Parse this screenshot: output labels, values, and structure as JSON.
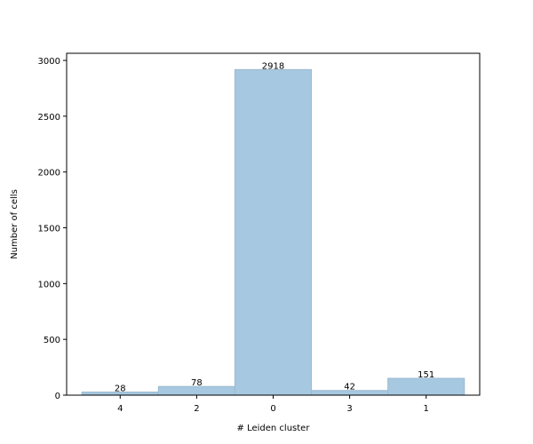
{
  "chart_data": {
    "type": "bar",
    "categories": [
      "4",
      "2",
      "0",
      "3",
      "1"
    ],
    "values": [
      28,
      78,
      2918,
      42,
      151
    ],
    "data_labels": [
      "28",
      "78",
      "2918",
      "42",
      "151"
    ],
    "title": "",
    "xlabel": "# Leiden cluster",
    "ylabel": "Number of cells",
    "ylim": [
      0,
      3064
    ],
    "yticks": [
      0,
      500,
      1000,
      1500,
      2000,
      2500,
      3000
    ],
    "ytick_labels": [
      "0",
      "500",
      "1000",
      "1500",
      "2000",
      "2500",
      "3000"
    ],
    "grid": false,
    "bar_color": "#a6c8e0",
    "bar_edge_color": "#9db9cf"
  }
}
